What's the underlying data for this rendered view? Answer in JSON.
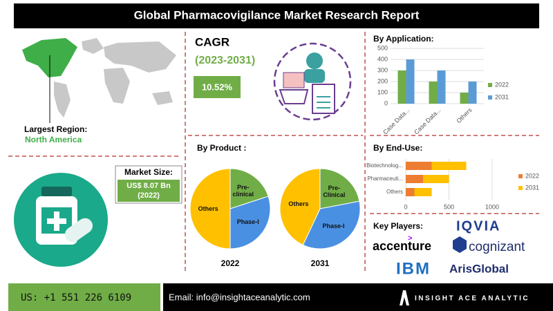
{
  "header": {
    "title": "Global Pharmacovigilance Market Research Report"
  },
  "region": {
    "label": "Largest Region:",
    "value": "North America"
  },
  "cagr": {
    "title": "CAGR",
    "period": "(2023-2031)",
    "value": "10.52%"
  },
  "market_size": {
    "label": "Market Size:",
    "value": "US$ 8.07 Bn",
    "year": "(2022)"
  },
  "by_application": {
    "title": "By Application:",
    "type": "bar",
    "categories": [
      "Case Data...",
      "Case Data...",
      "Others"
    ],
    "series": [
      {
        "name": "2022",
        "color": "#70ad47",
        "values": [
          300,
          200,
          100
        ]
      },
      {
        "name": "2031",
        "color": "#5b9bd5",
        "values": [
          400,
          300,
          200
        ]
      }
    ],
    "ylim": [
      0,
      500
    ],
    "yticks": [
      0,
      100,
      200,
      300,
      400,
      500
    ],
    "grid": true
  },
  "by_product": {
    "title": "By Product :",
    "type": "pie",
    "pies": [
      {
        "label": "2022",
        "categories": [
          "Pre-clinical",
          "Phase-I",
          "Others"
        ],
        "values": [
          20,
          30,
          50
        ],
        "colors": [
          "#70ad47",
          "#4a90e2",
          "#ffc000"
        ]
      },
      {
        "label": "2031",
        "categories": [
          "Pre-Clinical",
          "Phase-I",
          "Others"
        ],
        "values": [
          22,
          35,
          43
        ],
        "colors": [
          "#70ad47",
          "#4a90e2",
          "#ffc000"
        ]
      }
    ]
  },
  "by_end_use": {
    "title": "By End-Use:",
    "type": "stacked_barh",
    "categories": [
      "Biotechnolog...",
      "Pharmaceuti...",
      "Others"
    ],
    "series": [
      {
        "name": "2022",
        "color": "#ed7d31",
        "values": [
          300,
          200,
          100
        ]
      },
      {
        "name": "2031",
        "color": "#ffc000",
        "values": [
          400,
          300,
          200
        ]
      }
    ],
    "xlim": [
      0,
      1000
    ],
    "xticks": [
      0,
      500,
      1000
    ],
    "grid": true
  },
  "key_players": {
    "title": "Key Players:",
    "names": [
      "IQVIA",
      "accenture",
      "cognizant",
      "IBM",
      "ArisGlobal"
    ]
  },
  "footer": {
    "phone": "US: +1 551 226 6109",
    "email": "Email: info@insightaceanalytic.com",
    "brand": "INSIGHT ACE ANALYTIC"
  }
}
